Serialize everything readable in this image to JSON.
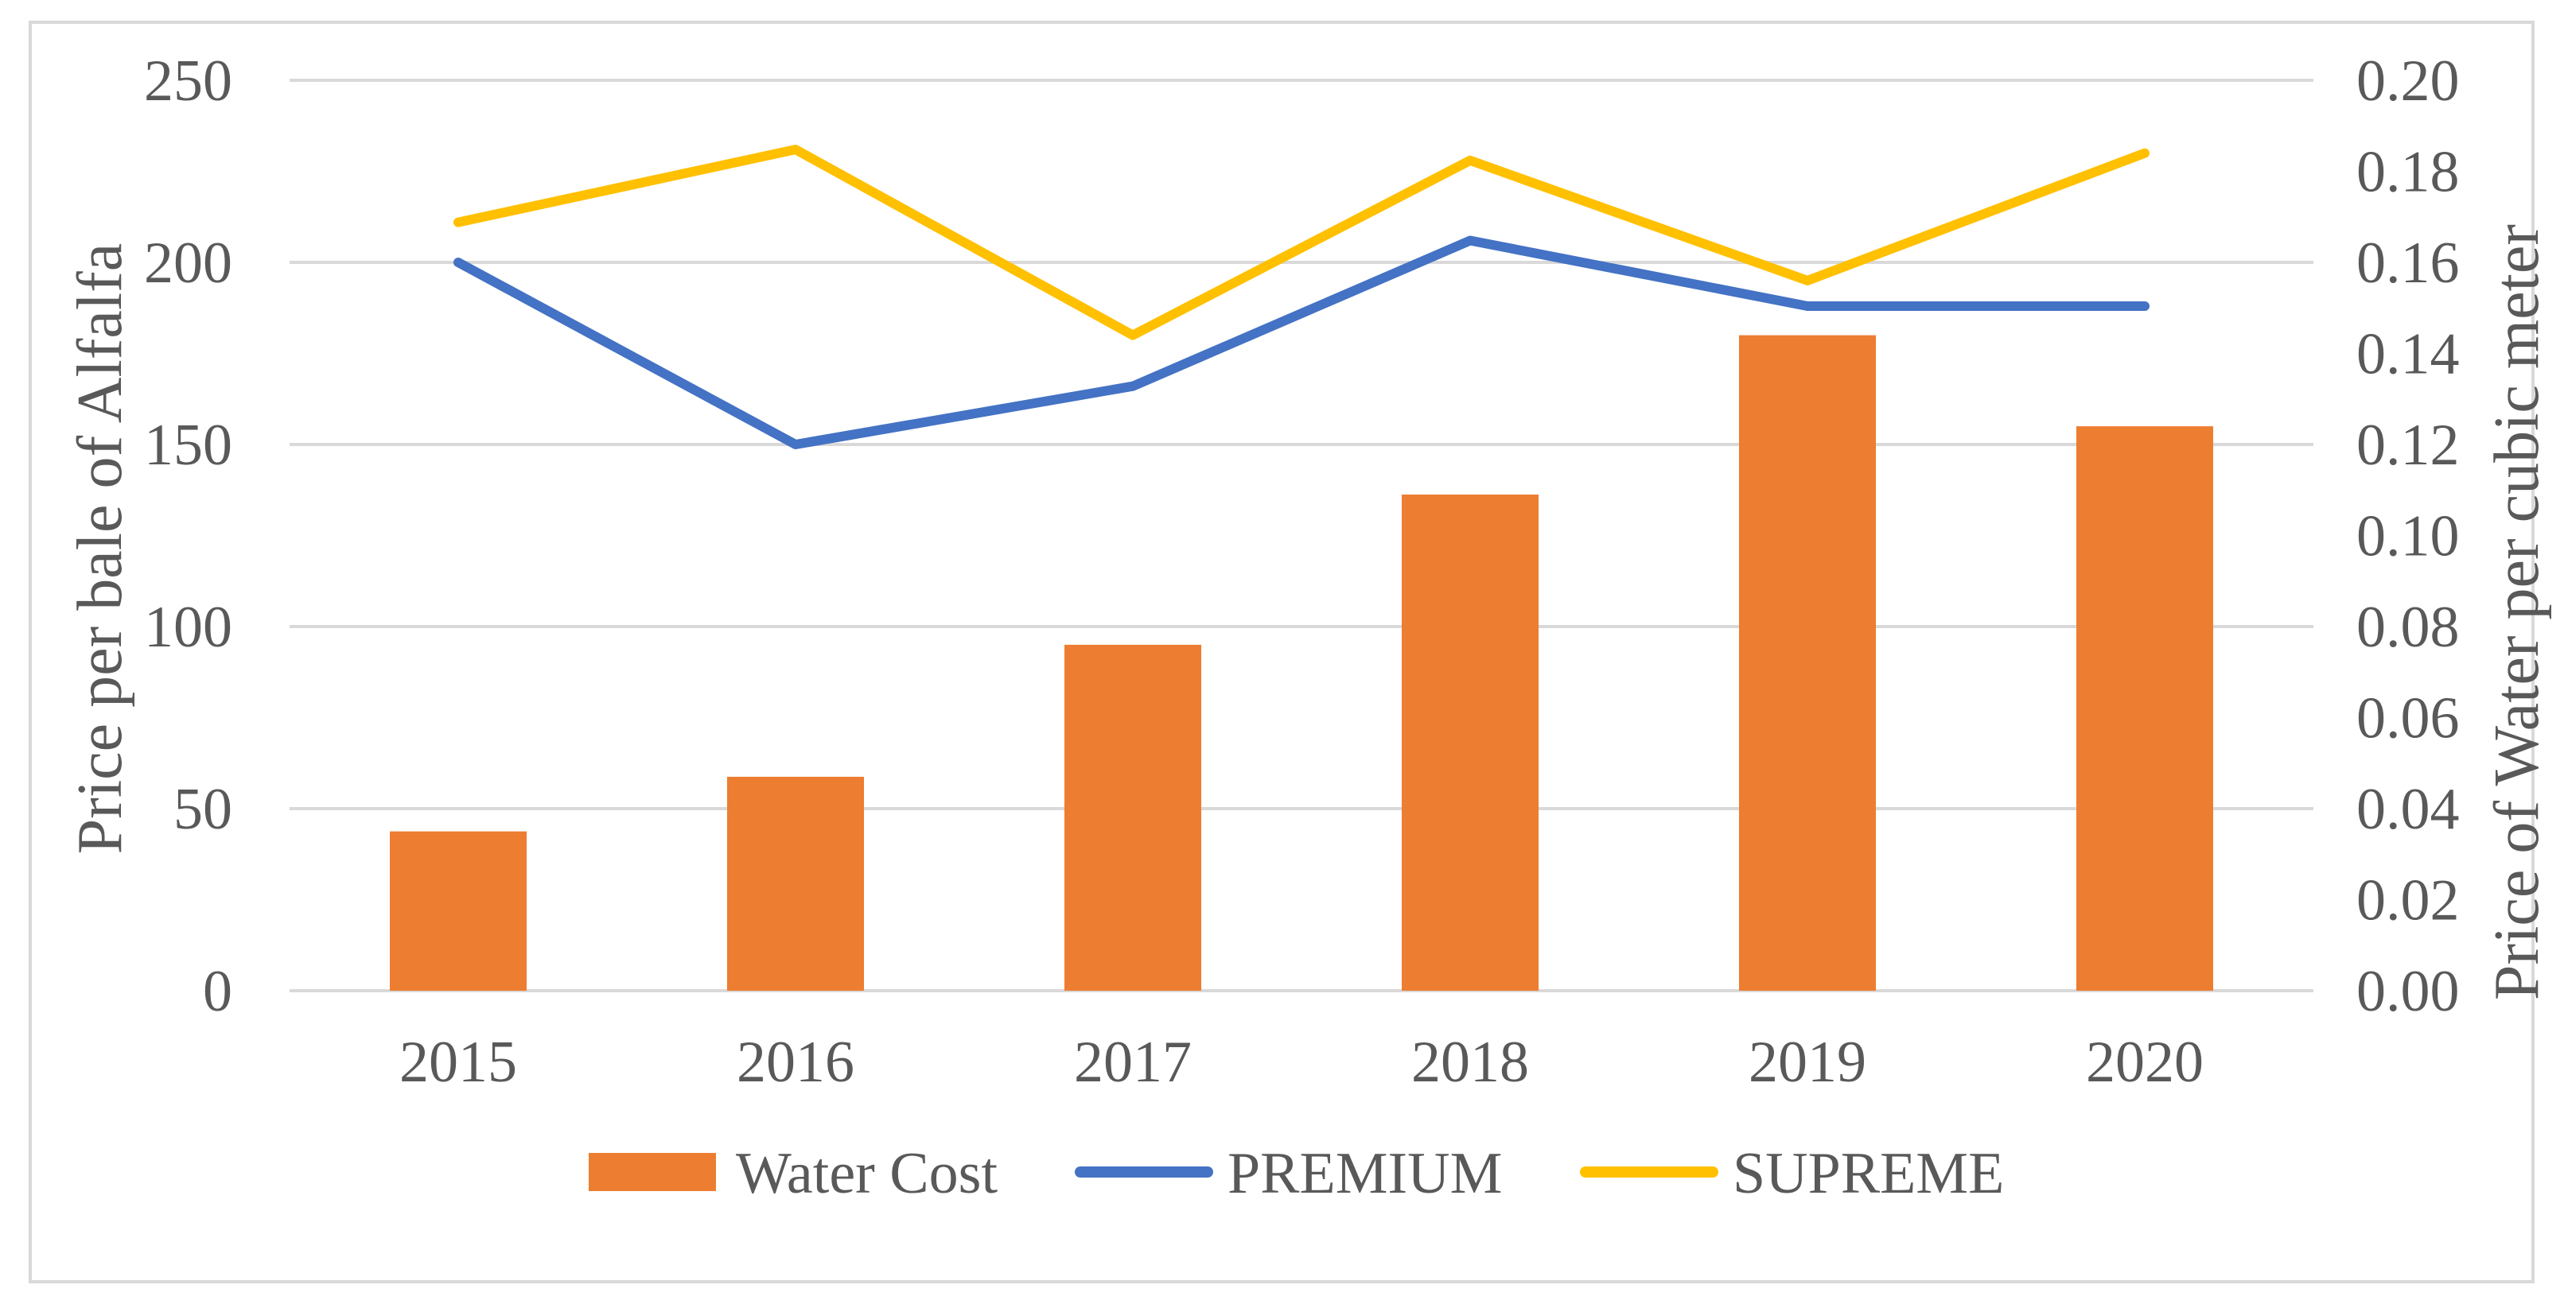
{
  "chart_data": {
    "type": "bar+line",
    "title": "",
    "categories": [
      "2015",
      "2016",
      "2017",
      "2018",
      "2019",
      "2020"
    ],
    "xlabel": "",
    "ylabel_left": "Price per bale of Alfalfa",
    "ylabel_right": "Price of Water per cubic meter",
    "ylim_left": [
      0,
      250
    ],
    "ylim_right": [
      0,
      0.2
    ],
    "yticks_left": [
      "0",
      "50",
      "100",
      "150",
      "200",
      "250"
    ],
    "yticks_right": [
      "0.00",
      "0.02",
      "0.04",
      "0.06",
      "0.08",
      "0.10",
      "0.12",
      "0.14",
      "0.16",
      "0.18",
      "0.20"
    ],
    "grid": true,
    "legend_position": "bottom",
    "series": [
      {
        "name": "Water Cost",
        "type": "bar",
        "axis": "right",
        "color": "#ed7d31",
        "values": [
          0.035,
          0.047,
          0.076,
          0.109,
          0.144,
          0.124
        ]
      },
      {
        "name": "PREMIUM",
        "type": "line",
        "axis": "left",
        "color": "#4472c4",
        "values": [
          200,
          150,
          166,
          206,
          188,
          188
        ]
      },
      {
        "name": "SUPREME",
        "type": "line",
        "axis": "left",
        "color": "#ffc000",
        "values": [
          211,
          231,
          180,
          228,
          195,
          230
        ]
      }
    ]
  }
}
